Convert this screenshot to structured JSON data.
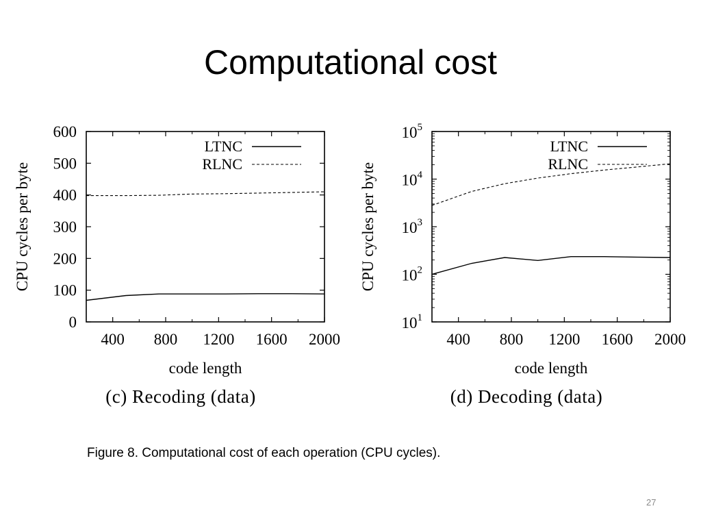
{
  "slide": {
    "title": "Computational cost",
    "caption": "Figure 8. Computational cost of each operation (CPU cycles).",
    "page_number": "27"
  },
  "chart_data": [
    {
      "type": "line",
      "subtitle": "(c) Recoding (data)",
      "xlabel": "code length",
      "ylabel": "CPU cycles per byte",
      "xlim": [
        200,
        2000
      ],
      "ylim": [
        0,
        600
      ],
      "yscale": "linear",
      "xticks": [
        400,
        800,
        1200,
        1600,
        2000
      ],
      "xtick_labels": [
        "400",
        "800",
        "1200",
        "1600",
        "2000"
      ],
      "yticks": [
        0,
        100,
        200,
        300,
        400,
        500,
        600
      ],
      "ytick_labels": [
        "0",
        "100",
        "200",
        "300",
        "400",
        "500",
        "600"
      ],
      "legend_position": "top-right",
      "grid": false,
      "series": [
        {
          "name": "LTNC",
          "style": "solid",
          "x": [
            200,
            500,
            750,
            1000,
            1250,
            1500,
            1750,
            2000
          ],
          "y": [
            68,
            83,
            88,
            88,
            88,
            89,
            89,
            88
          ]
        },
        {
          "name": "RLNC",
          "style": "dashed",
          "x": [
            200,
            500,
            750,
            1000,
            1250,
            1500,
            1750,
            2000
          ],
          "y": [
            398,
            398,
            399,
            403,
            404,
            406,
            408,
            410
          ]
        }
      ]
    },
    {
      "type": "line",
      "subtitle": "(d) Decoding (data)",
      "xlabel": "code length",
      "ylabel": "CPU cycles per byte",
      "xlim": [
        200,
        2000
      ],
      "ylim": [
        10,
        100000
      ],
      "yscale": "log",
      "xticks": [
        400,
        800,
        1200,
        1600,
        2000
      ],
      "xtick_labels": [
        "400",
        "800",
        "1200",
        "1600",
        "2000"
      ],
      "yticks": [
        10,
        100,
        1000,
        10000,
        100000
      ],
      "ytick_base": "10",
      "ytick_exponents": [
        "1",
        "2",
        "3",
        "4",
        "5"
      ],
      "legend_position": "top-right",
      "grid": false,
      "series": [
        {
          "name": "LTNC",
          "style": "solid",
          "x": [
            200,
            500,
            750,
            1000,
            1250,
            1500,
            1750,
            2000
          ],
          "y": [
            100,
            170,
            225,
            195,
            235,
            235,
            230,
            225
          ]
        },
        {
          "name": "RLNC",
          "style": "dashed",
          "x": [
            200,
            500,
            750,
            1000,
            1250,
            1500,
            1750,
            2000
          ],
          "y": [
            2800,
            5500,
            8000,
            10500,
            13000,
            15500,
            18000,
            21000
          ]
        }
      ]
    }
  ]
}
